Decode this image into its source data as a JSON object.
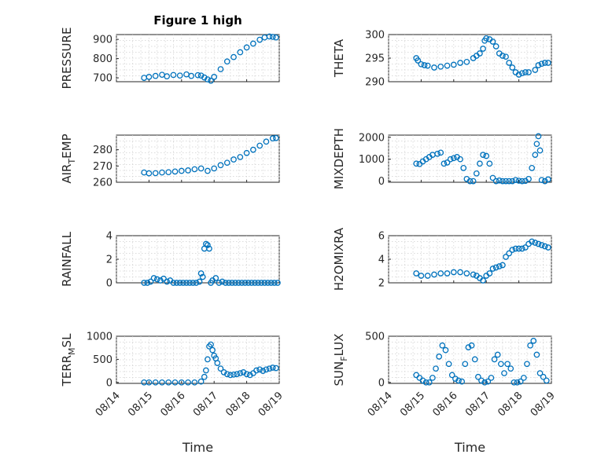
{
  "colors": {
    "marker": "#0072bd",
    "axis": "#262626",
    "grid": "#d0d0d0"
  },
  "x_tick_labels": [
    "08/14",
    "08/15",
    "08/16",
    "08/17",
    "08/18",
    "08/19"
  ],
  "xlabel": "Time",
  "chart_data": [
    {
      "type": "scatter",
      "title": "Figure 1 high",
      "ylabel": "PRESSURE",
      "ylim": [
        680,
        925
      ],
      "yticks": [
        700,
        800,
        900
      ],
      "xlim": [
        0,
        5
      ],
      "grid": true,
      "x": [
        0.85,
        1.0,
        1.2,
        1.4,
        1.55,
        1.75,
        1.95,
        2.15,
        2.3,
        2.5,
        2.6,
        2.7,
        2.8,
        2.9,
        3.0,
        3.2,
        3.4,
        3.6,
        3.8,
        4.0,
        4.2,
        4.4,
        4.55,
        4.7,
        4.8,
        4.9
      ],
      "y": [
        700,
        705,
        710,
        716,
        708,
        715,
        712,
        718,
        710,
        714,
        712,
        702,
        692,
        685,
        705,
        745,
        785,
        808,
        833,
        858,
        878,
        898,
        910,
        915,
        913,
        910
      ]
    },
    {
      "type": "scatter",
      "title": "",
      "ylabel": "THETA",
      "ylim": [
        290,
        300
      ],
      "yticks": [
        290,
        295,
        300
      ],
      "xlim": [
        0,
        5
      ],
      "grid": true,
      "x": [
        0.85,
        0.9,
        1.0,
        1.1,
        1.2,
        1.4,
        1.6,
        1.8,
        2.0,
        2.2,
        2.4,
        2.6,
        2.7,
        2.8,
        2.9,
        2.95,
        3.0,
        3.1,
        3.2,
        3.3,
        3.4,
        3.5,
        3.6,
        3.7,
        3.8,
        3.9,
        4.0,
        4.1,
        4.2,
        4.3,
        4.5,
        4.6,
        4.7,
        4.8,
        4.9
      ],
      "y": [
        295,
        294.5,
        293.7,
        293.5,
        293.4,
        293,
        293.2,
        293.4,
        293.6,
        294,
        294.2,
        295,
        295.5,
        296,
        297,
        298.7,
        299.2,
        299,
        298.5,
        297.5,
        296,
        295.5,
        295.3,
        294,
        293,
        292,
        291.5,
        291.8,
        292,
        292,
        292.5,
        293.5,
        293.8,
        294,
        294
      ]
    },
    {
      "type": "scatter",
      "title": "",
      "ylabel": "AIR_TEMP",
      "ylim": [
        260,
        289
      ],
      "yticks": [
        260,
        270,
        280
      ],
      "xlim": [
        0,
        5
      ],
      "grid": true,
      "x": [
        0.85,
        1.0,
        1.2,
        1.4,
        1.6,
        1.8,
        2.0,
        2.2,
        2.4,
        2.6,
        2.8,
        3.0,
        3.2,
        3.4,
        3.6,
        3.8,
        4.0,
        4.2,
        4.4,
        4.6,
        4.8,
        4.9
      ],
      "y": [
        266,
        265.5,
        265.6,
        266,
        266.2,
        266.6,
        267,
        267.3,
        268,
        268.5,
        267,
        268.5,
        270.5,
        272,
        274,
        275.5,
        278,
        280,
        282.5,
        285,
        287,
        287.2
      ]
    },
    {
      "type": "scatter",
      "title": "",
      "ylabel": "MIXDEPTH",
      "ylim": [
        -50,
        2100
      ],
      "yticks": [
        0,
        1000,
        2000
      ],
      "xlim": [
        0,
        5
      ],
      "grid": true,
      "x": [
        0.85,
        0.95,
        1.05,
        1.15,
        1.25,
        1.35,
        1.5,
        1.6,
        1.7,
        1.8,
        1.9,
        2.0,
        2.1,
        2.2,
        2.3,
        2.4,
        2.5,
        2.6,
        2.7,
        2.8,
        2.9,
        3.0,
        3.1,
        3.2,
        3.3,
        3.4,
        3.5,
        3.6,
        3.7,
        3.8,
        3.9,
        4.0,
        4.1,
        4.2,
        4.3,
        4.4,
        4.5,
        4.55,
        4.6,
        4.65,
        4.7,
        4.8,
        4.9
      ],
      "y": [
        800,
        780,
        900,
        1000,
        1100,
        1200,
        1250,
        1300,
        800,
        850,
        1000,
        1050,
        1100,
        1000,
        600,
        100,
        0,
        0,
        350,
        800,
        1200,
        1150,
        800,
        150,
        0,
        30,
        0,
        0,
        0,
        0,
        50,
        20,
        0,
        10,
        100,
        600,
        1200,
        1700,
        2050,
        1400,
        50,
        0,
        80
      ]
    },
    {
      "type": "scatter",
      "title": "",
      "ylabel": "RAINFALL",
      "ylim": [
        0,
        4
      ],
      "yticks": [
        0,
        2,
        4
      ],
      "xlim": [
        0,
        5
      ],
      "grid": true,
      "x": [
        0.85,
        0.95,
        1.05,
        1.15,
        1.25,
        1.35,
        1.45,
        1.55,
        1.65,
        1.75,
        1.85,
        1.95,
        2.05,
        2.15,
        2.25,
        2.35,
        2.45,
        2.55,
        2.6,
        2.65,
        2.7,
        2.75,
        2.8,
        2.85,
        2.9,
        2.95,
        3.05,
        3.15,
        3.25,
        3.35,
        3.45,
        3.55,
        3.65,
        3.75,
        3.85,
        3.95,
        4.05,
        4.15,
        4.25,
        4.35,
        4.45,
        4.55,
        4.65,
        4.75,
        4.85,
        4.95
      ],
      "y": [
        0,
        0,
        0.1,
        0.4,
        0.3,
        0.2,
        0.35,
        0.1,
        0.2,
        0,
        0,
        0,
        0,
        0,
        0,
        0,
        0,
        0.1,
        0.8,
        0.5,
        2.9,
        3.3,
        3.2,
        2.9,
        0,
        0.2,
        0.4,
        0,
        0.1,
        0,
        0,
        0,
        0,
        0,
        0,
        0,
        0,
        0,
        0,
        0,
        0,
        0,
        0,
        0,
        0,
        0
      ]
    },
    {
      "type": "scatter",
      "title": "",
      "ylabel": "H2OMIXRA",
      "ylim": [
        2,
        6
      ],
      "yticks": [
        2,
        4,
        6
      ],
      "xlim": [
        0,
        5
      ],
      "grid": true,
      "x": [
        0.85,
        1.0,
        1.2,
        1.4,
        1.6,
        1.8,
        2.0,
        2.2,
        2.4,
        2.6,
        2.7,
        2.8,
        2.9,
        3.0,
        3.1,
        3.2,
        3.3,
        3.4,
        3.5,
        3.6,
        3.7,
        3.8,
        3.9,
        4.0,
        4.1,
        4.2,
        4.3,
        4.4,
        4.5,
        4.6,
        4.7,
        4.8,
        4.9
      ],
      "y": [
        2.8,
        2.6,
        2.6,
        2.7,
        2.8,
        2.8,
        2.9,
        2.9,
        2.8,
        2.7,
        2.6,
        2.4,
        2.2,
        2.6,
        2.8,
        3.2,
        3.3,
        3.4,
        3.5,
        4.2,
        4.5,
        4.8,
        4.9,
        4.9,
        4.9,
        5.0,
        5.3,
        5.5,
        5.4,
        5.3,
        5.2,
        5.1,
        5.0
      ]
    },
    {
      "type": "scatter",
      "title": "",
      "ylabel": "TERR_MSL",
      "ylim": [
        -20,
        1000
      ],
      "yticks": [
        0,
        500,
        1000
      ],
      "xlim": [
        0,
        5
      ],
      "grid": true,
      "x": [
        0.85,
        1.0,
        1.2,
        1.4,
        1.6,
        1.8,
        2.0,
        2.2,
        2.4,
        2.6,
        2.7,
        2.75,
        2.8,
        2.85,
        2.9,
        2.95,
        3.0,
        3.05,
        3.1,
        3.2,
        3.3,
        3.4,
        3.5,
        3.6,
        3.7,
        3.8,
        3.9,
        4.0,
        4.1,
        4.2,
        4.3,
        4.4,
        4.5,
        4.6,
        4.7,
        4.8,
        4.9
      ],
      "y": [
        0,
        0,
        0,
        0,
        0,
        0,
        0,
        0,
        0,
        20,
        120,
        260,
        500,
        780,
        820,
        700,
        580,
        520,
        420,
        300,
        220,
        180,
        160,
        170,
        180,
        200,
        220,
        180,
        160,
        200,
        260,
        280,
        250,
        280,
        300,
        320,
        310
      ]
    },
    {
      "type": "scatter",
      "title": "",
      "ylabel": "SUN_FLUX",
      "ylim": [
        -10,
        500
      ],
      "yticks": [
        0,
        500
      ],
      "xlim": [
        0,
        5
      ],
      "grid": true,
      "x": [
        0.85,
        0.95,
        1.05,
        1.15,
        1.25,
        1.35,
        1.45,
        1.55,
        1.65,
        1.75,
        1.85,
        1.95,
        2.05,
        2.15,
        2.25,
        2.35,
        2.45,
        2.55,
        2.65,
        2.75,
        2.85,
        2.95,
        3.05,
        3.15,
        3.25,
        3.35,
        3.45,
        3.55,
        3.65,
        3.75,
        3.85,
        3.95,
        4.05,
        4.15,
        4.25,
        4.35,
        4.45,
        4.55,
        4.65,
        4.75,
        4.85
      ],
      "y": [
        80,
        50,
        20,
        0,
        0,
        50,
        150,
        280,
        400,
        350,
        200,
        80,
        40,
        20,
        10,
        200,
        380,
        400,
        250,
        60,
        20,
        0,
        10,
        50,
        250,
        300,
        200,
        100,
        200,
        150,
        0,
        0,
        10,
        50,
        200,
        400,
        450,
        300,
        100,
        60,
        20
      ]
    }
  ]
}
